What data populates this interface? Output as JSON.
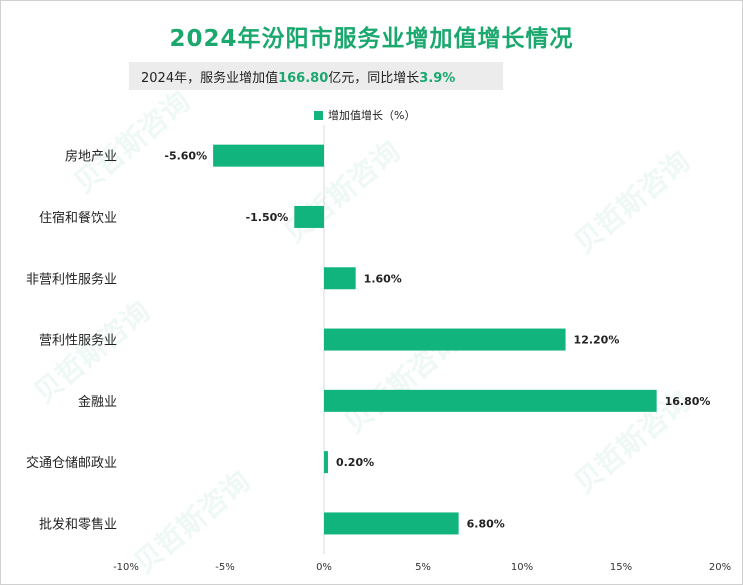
{
  "title": "2024年汾阳市服务业增加值增长情况",
  "subtitle": {
    "prefix": "2024年，服务业增加值",
    "value": "166.80",
    "middle": "亿元，同比增长",
    "growth": "3.9%"
  },
  "watermark": "贝哲斯咨询",
  "colors": {
    "bar": "#10b47c",
    "title": "#1aa86e",
    "axis": "#d9d9d9"
  },
  "chart_data": {
    "type": "bar",
    "orientation": "horizontal",
    "legend": "增加值增长（%）",
    "legend_position": "top",
    "categories": [
      "房地产业",
      "住宿和餐饮业",
      "非营利性服务业",
      "营利性服务业",
      "金融业",
      "交通仓储邮政业",
      "批发和零售业"
    ],
    "values": [
      -5.6,
      -1.5,
      1.6,
      12.2,
      16.8,
      0.2,
      6.8
    ],
    "value_labels": [
      "-5.60%",
      "-1.50%",
      "1.60%",
      "12.20%",
      "16.80%",
      "0.20%",
      "6.80%"
    ],
    "xlim": [
      -10,
      20
    ],
    "xticks": [
      -10,
      -5,
      0,
      5,
      10,
      15,
      20
    ],
    "xtick_labels": [
      "-10%",
      "-5%",
      "0%",
      "5%",
      "10%",
      "15%",
      "20%"
    ],
    "grid": false
  }
}
